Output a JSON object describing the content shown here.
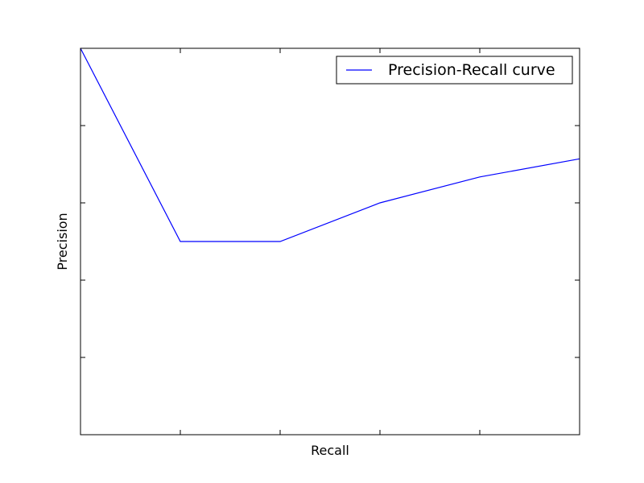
{
  "chart_data": {
    "type": "line",
    "title": "",
    "xlabel": "Recall",
    "ylabel": "Precision",
    "xlim": [
      0,
      5
    ],
    "ylim": [
      0,
      1
    ],
    "x_ticks": [
      1,
      2,
      3,
      4
    ],
    "y_ticks": [
      0.2,
      0.4,
      0.6,
      0.8
    ],
    "tick_labels_visible": false,
    "grid": false,
    "legend": {
      "location": "top-right"
    },
    "series": [
      {
        "name": "Precision-Recall curve",
        "color": "#0000ff",
        "x": [
          0,
          1,
          2,
          3,
          4,
          5
        ],
        "y": [
          1.0,
          0.5,
          0.5,
          0.6,
          0.667,
          0.714
        ]
      }
    ]
  }
}
